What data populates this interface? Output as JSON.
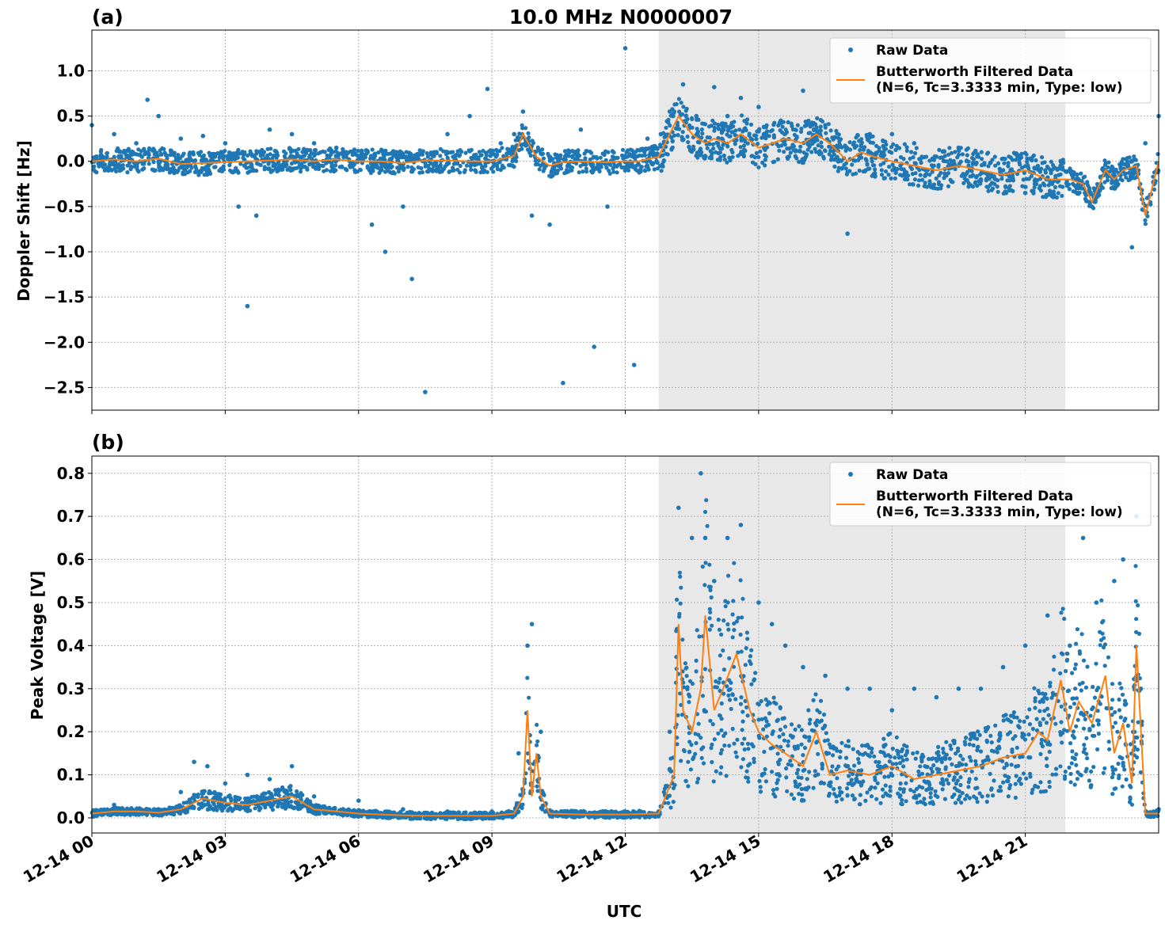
{
  "figure": {
    "title": "10.0 MHz N0000007",
    "xlabel": "UTC",
    "x_ticks": [
      "12-14 00",
      "12-14 03",
      "12-14 06",
      "12-14 09",
      "12-14 12",
      "12-14 15",
      "12-14 18",
      "12-14 21"
    ],
    "colors": {
      "raw": "#1f77b4",
      "filtered": "#ff7f0e",
      "shade": "#e8e8e8",
      "grid": "#b0b0b0"
    }
  },
  "chart_data": [
    {
      "type": "scatter",
      "panel_label": "(a)",
      "ylabel": "Doppler Shift [Hz]",
      "xlim_hours": [
        0,
        24
      ],
      "ylim": [
        -2.75,
        1.45
      ],
      "y_ticks": [
        "1.0",
        "0.5",
        "0.0",
        "−0.5",
        "−1.0",
        "−1.5",
        "−2.0",
        "−2.5"
      ],
      "y_tick_values": [
        1.0,
        0.5,
        0.0,
        -0.5,
        -1.0,
        -1.5,
        -2.0,
        -2.5
      ],
      "shaded_region_hours": [
        12.75,
        21.9
      ],
      "grid": true,
      "legend_position": "top-right",
      "legend": [
        "Raw Data",
        "Butterworth Filtered Data",
        "(N=6, Tc=3.3333 min, Type: low)"
      ],
      "series": [
        {
          "name": "Butterworth Filtered Data",
          "kind": "line",
          "x": [
            0,
            0.5,
            1,
            1.5,
            2,
            2.5,
            3,
            3.5,
            4,
            4.5,
            5,
            5.5,
            6,
            6.5,
            7,
            7.5,
            8,
            8.5,
            9,
            9.5,
            9.7,
            10,
            10.3,
            10.6,
            11,
            11.5,
            12,
            12.3,
            12.75,
            13,
            13.2,
            13.5,
            13.8,
            14,
            14.3,
            14.6,
            15,
            15.3,
            15.6,
            16,
            16.3,
            16.6,
            17,
            17.3,
            17.6,
            18,
            18.5,
            19,
            19.5,
            20,
            20.5,
            21,
            21.5,
            22,
            22.3,
            22.5,
            22.8,
            23,
            23.2,
            23.5,
            23.7,
            24
          ],
          "y": [
            0.0,
            0.02,
            0.0,
            0.03,
            -0.03,
            -0.02,
            -0.01,
            0.0,
            0.01,
            0.02,
            0.0,
            0.02,
            0.0,
            0.0,
            -0.02,
            0.01,
            0.01,
            0.0,
            0.0,
            0.06,
            0.3,
            0.05,
            -0.05,
            -0.01,
            0.0,
            -0.01,
            0.0,
            0.0,
            0.05,
            0.3,
            0.5,
            0.3,
            0.2,
            0.25,
            0.2,
            0.3,
            0.15,
            0.2,
            0.25,
            0.2,
            0.3,
            0.2,
            0.0,
            0.1,
            0.05,
            0.0,
            -0.05,
            -0.1,
            -0.05,
            -0.1,
            -0.15,
            -0.1,
            -0.2,
            -0.2,
            -0.25,
            -0.45,
            -0.1,
            -0.2,
            -0.1,
            -0.05,
            -0.6,
            0.0
          ]
        },
        {
          "name": "Raw Data",
          "kind": "points",
          "x": [
            0,
            0.5,
            1,
            1.25,
            1.5,
            2,
            2.5,
            3,
            3.3,
            3.5,
            3.7,
            4,
            4.5,
            5,
            5.5,
            6,
            6.3,
            6.6,
            7,
            7.2,
            7.5,
            8,
            8.5,
            8.9,
            9.2,
            9.5,
            9.7,
            9.9,
            10.3,
            10.6,
            11,
            11.3,
            11.6,
            12,
            12.2,
            12.5,
            12.8,
            13,
            13.3,
            13.6,
            14,
            14.3,
            14.6,
            15,
            15.5,
            16,
            16.5,
            17,
            17.5,
            18,
            18.5,
            19,
            19.5,
            20,
            20.5,
            21,
            21.5,
            22,
            22.5,
            23,
            23.4,
            23.7,
            24
          ],
          "y": [
            0.4,
            0.3,
            0.2,
            0.68,
            0.5,
            0.25,
            0.28,
            0.2,
            -0.5,
            -1.6,
            -0.6,
            0.35,
            0.3,
            0.2,
            0.15,
            0.05,
            -0.7,
            -1.0,
            -0.5,
            -1.3,
            -2.55,
            0.3,
            0.5,
            0.8,
            0.2,
            0.3,
            0.55,
            -0.6,
            -0.7,
            -2.45,
            0.35,
            -2.05,
            -0.5,
            1.25,
            -2.25,
            0.25,
            0.3,
            0.55,
            0.85,
            0.5,
            0.82,
            0.5,
            0.7,
            0.6,
            0.45,
            0.78,
            0.4,
            -0.8,
            0.3,
            0.3,
            0.2,
            0.05,
            0.15,
            -0.2,
            -0.1,
            -0.35,
            -0.2,
            -0.1,
            -0.5,
            -0.2,
            -0.95,
            0.2,
            0.5
          ]
        }
      ]
    },
    {
      "type": "scatter",
      "panel_label": "(b)",
      "ylabel": "Peak Voltage [V]",
      "xlim_hours": [
        0,
        24
      ],
      "ylim": [
        -0.035,
        0.84
      ],
      "y_ticks": [
        "0.8",
        "0.7",
        "0.6",
        "0.5",
        "0.4",
        "0.3",
        "0.2",
        "0.1",
        "0.0"
      ],
      "y_tick_values": [
        0.8,
        0.7,
        0.6,
        0.5,
        0.4,
        0.3,
        0.2,
        0.1,
        0.0
      ],
      "shaded_region_hours": [
        12.75,
        21.9
      ],
      "grid": true,
      "legend_position": "top-right",
      "legend": [
        "Raw Data",
        "Butterworth Filtered Data",
        "(N=6, Tc=3.3333 min, Type: low)"
      ],
      "series": [
        {
          "name": "Butterworth Filtered Data",
          "kind": "line",
          "x": [
            0,
            0.5,
            1,
            1.5,
            2,
            2.5,
            3,
            3.5,
            4,
            4.5,
            5,
            5.5,
            6,
            6.5,
            7,
            7.5,
            8,
            8.5,
            9,
            9.5,
            9.7,
            9.8,
            9.9,
            10,
            10.1,
            10.3,
            11,
            12,
            12.75,
            13.1,
            13.2,
            13.3,
            13.5,
            13.7,
            13.8,
            14,
            14.2,
            14.5,
            14.8,
            15,
            15.3,
            15.6,
            16,
            16.3,
            16.6,
            17,
            17.5,
            18,
            18.5,
            19,
            19.5,
            20,
            20.5,
            21,
            21.3,
            21.5,
            21.8,
            22,
            22.2,
            22.5,
            22.8,
            23,
            23.2,
            23.4,
            23.5,
            23.7,
            24
          ],
          "y": [
            0.01,
            0.015,
            0.015,
            0.012,
            0.02,
            0.045,
            0.035,
            0.03,
            0.04,
            0.05,
            0.02,
            0.015,
            0.01,
            0.008,
            0.006,
            0.005,
            0.005,
            0.005,
            0.005,
            0.01,
            0.05,
            0.25,
            0.05,
            0.15,
            0.05,
            0.01,
            0.008,
            0.008,
            0.01,
            0.1,
            0.45,
            0.25,
            0.2,
            0.3,
            0.47,
            0.25,
            0.3,
            0.38,
            0.25,
            0.2,
            0.17,
            0.15,
            0.12,
            0.2,
            0.1,
            0.11,
            0.1,
            0.12,
            0.09,
            0.1,
            0.11,
            0.12,
            0.14,
            0.15,
            0.2,
            0.18,
            0.32,
            0.2,
            0.27,
            0.22,
            0.33,
            0.15,
            0.22,
            0.08,
            0.4,
            0.01,
            0.01
          ]
        },
        {
          "name": "Raw Data",
          "kind": "points",
          "x": [
            0.5,
            1.5,
            2,
            2.3,
            2.6,
            3,
            3.5,
            4,
            4.5,
            5,
            6,
            7,
            8,
            9,
            9.6,
            9.8,
            9.9,
            10.1,
            11,
            12,
            12.75,
            13,
            13.2,
            13.5,
            13.7,
            13.8,
            14,
            14.3,
            14.6,
            15,
            15.3,
            15.6,
            16,
            16.5,
            17,
            17.5,
            18,
            18.5,
            19,
            19.5,
            20,
            20.5,
            21,
            21.5,
            22,
            22.3,
            22.6,
            23,
            23.2,
            23.5,
            23.6,
            24
          ],
          "y": [
            0.03,
            0.02,
            0.06,
            0.13,
            0.12,
            0.08,
            0.1,
            0.09,
            0.12,
            0.05,
            0.04,
            0.02,
            0.015,
            0.015,
            0.15,
            0.4,
            0.45,
            0.2,
            0.015,
            0.015,
            0.015,
            0.2,
            0.72,
            0.65,
            0.8,
            0.65,
            0.55,
            0.65,
            0.68,
            0.5,
            0.45,
            0.4,
            0.35,
            0.33,
            0.3,
            0.3,
            0.25,
            0.3,
            0.28,
            0.3,
            0.3,
            0.35,
            0.4,
            0.47,
            0.4,
            0.65,
            0.5,
            0.55,
            0.6,
            0.7,
            0.3,
            0.02
          ]
        }
      ]
    }
  ]
}
